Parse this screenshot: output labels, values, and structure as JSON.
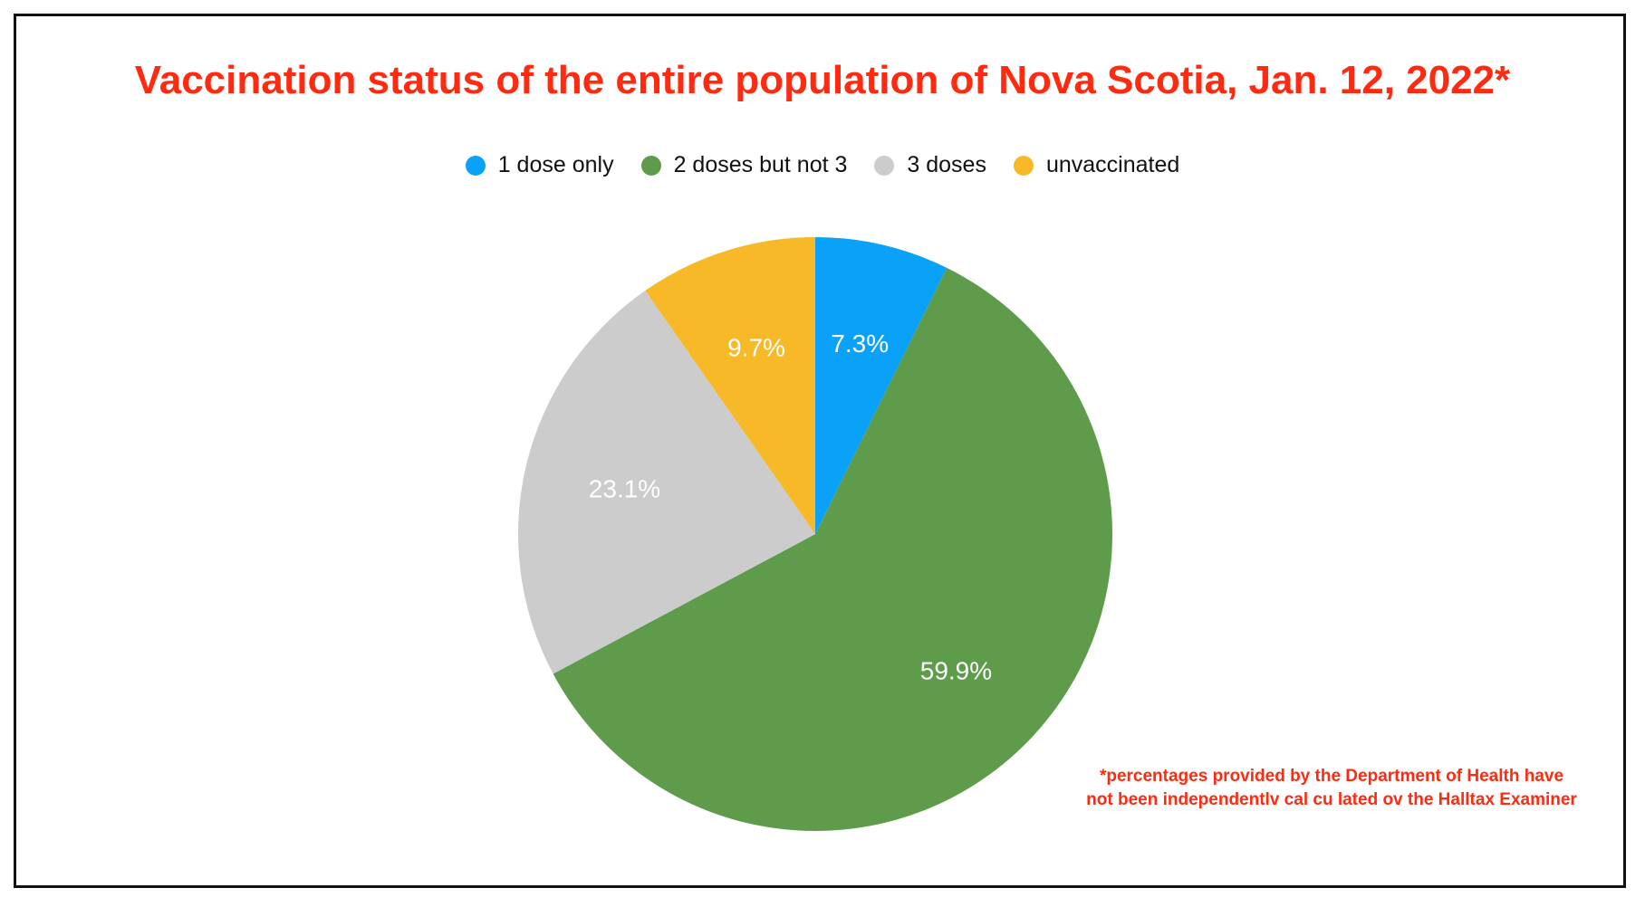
{
  "chart_data": {
    "type": "pie",
    "title": "Vaccination status of the entire population of Nova Scotia, Jan. 12, 2022*",
    "categories": [
      "1 dose only",
      "2 doses but not 3",
      "3 doses",
      "unvaccinated"
    ],
    "values": [
      7.3,
      59.9,
      23.1,
      9.7
    ],
    "data_labels": [
      "7.3%",
      "59.9%",
      "23.1%",
      "9.7%"
    ],
    "colors": [
      "#0aa2f9",
      "#5e9c4b",
      "#cccccc",
      "#f7b928"
    ],
    "legend_position": "top",
    "start": "top, clockwise",
    "footnote": [
      "*percentages provided by the Department of Health have",
      "not been independentlv cal cu lated ov the Halltax Examiner"
    ]
  }
}
